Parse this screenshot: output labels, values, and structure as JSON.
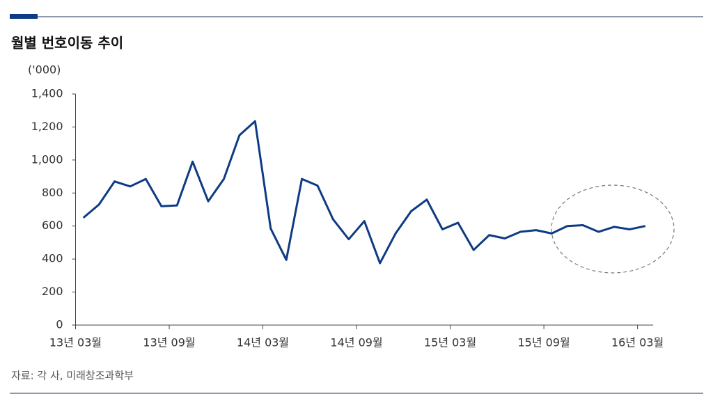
{
  "chart_data": {
    "type": "line",
    "title": "월별 번호이동 추이",
    "unit_label": "('000)",
    "source": "자료: 각 사, 미래창조과학부",
    "categories": [
      "13년 03월",
      null,
      null,
      null,
      null,
      null,
      "13년 09월",
      null,
      null,
      null,
      null,
      null,
      "14년 03월",
      null,
      null,
      null,
      null,
      null,
      "14년 09월",
      null,
      null,
      null,
      null,
      null,
      "15년 03월",
      null,
      null,
      null,
      null,
      null,
      "15년 09월",
      null,
      null,
      null,
      null,
      null,
      "16년 03월"
    ],
    "series": [
      {
        "name": "번호이동",
        "color": "#0e3b84",
        "values": [
          650,
          730,
          870,
          840,
          885,
          720,
          725,
          990,
          750,
          885,
          1150,
          1235,
          585,
          395,
          885,
          845,
          640,
          520,
          630,
          375,
          555,
          690,
          760,
          580,
          620,
          455,
          545,
          525,
          565,
          575,
          555,
          600,
          605,
          565,
          595,
          580,
          600
        ]
      }
    ],
    "ylim": [
      0,
      1400
    ],
    "yticks": [
      0,
      200,
      400,
      600,
      800,
      {
        "value": 1000,
        "label": "1,000"
      },
      {
        "value": 1200,
        "label": "1,200"
      },
      {
        "value": 1400,
        "label": "1,400"
      }
    ]
  }
}
